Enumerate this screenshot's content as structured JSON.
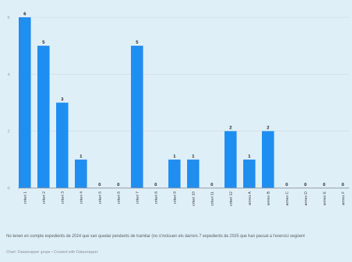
{
  "chart_data": {
    "type": "bar",
    "categories": [
      "criteri 1",
      "criteri 2",
      "criteri 3",
      "criteri 4",
      "criteri 5",
      "criteri 6",
      "criteri 7",
      "criteri 8",
      "criteri 9",
      "criteri 10",
      "criteri 11",
      "criteri 12",
      "annex A",
      "annex B",
      "annex C",
      "annex D",
      "annex E",
      "annex F"
    ],
    "values": [
      6,
      5,
      3,
      1,
      0,
      0,
      5,
      0,
      1,
      1,
      0,
      2,
      1,
      2,
      0,
      0,
      0,
      0
    ],
    "y_ticks": [
      "0",
      "2",
      "4",
      "6"
    ],
    "ylim": [
      0,
      6.5
    ],
    "grid": true,
    "bar_color": "#1f8ef1",
    "title": "",
    "xlabel": "",
    "ylabel": ""
  },
  "footnote": "No tenen en compte expedients de 2024 que van quedar pendents de tramitar (no s'inclouen els darrers 7 expedients de 2025 que han passat a l'exercici següent",
  "credit": "Chart: Datawrapper grupe • Created with Datawrapper"
}
